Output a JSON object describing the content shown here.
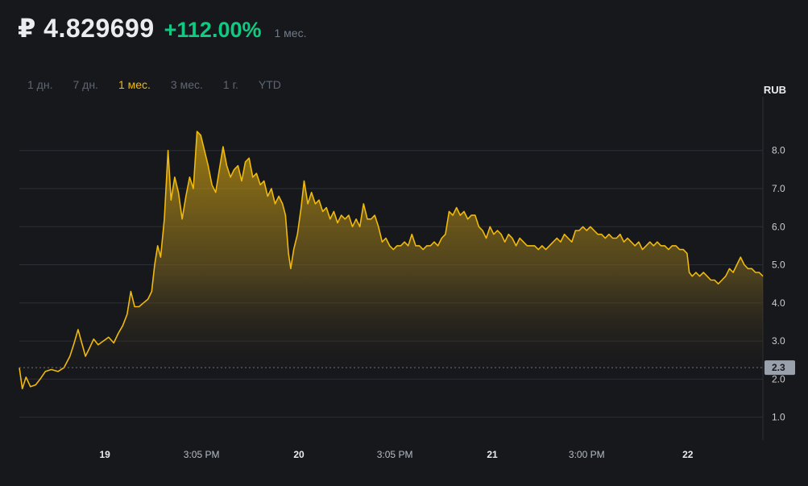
{
  "header": {
    "price": "₽ 4.829699",
    "change": "+112.00%",
    "period": "1 мес."
  },
  "ranges": [
    {
      "label": "1 дн.",
      "active": false
    },
    {
      "label": "7 дн.",
      "active": false
    },
    {
      "label": "1 мес.",
      "active": true
    },
    {
      "label": "3 мес.",
      "active": false
    },
    {
      "label": "1 г.",
      "active": false
    },
    {
      "label": "YTD",
      "active": false
    }
  ],
  "colors": {
    "line": "#f0b90b",
    "grid": "#2b2f36",
    "positive": "#0ecb81",
    "marker_bg": "#9aa1ac"
  },
  "chart_data": {
    "type": "area",
    "unit": "RUB",
    "ylim": [
      0.4,
      9.2
    ],
    "yticks": [
      "1.0",
      "2.0",
      "3.0",
      "4.0",
      "5.0",
      "6.0",
      "7.0",
      "8.0"
    ],
    "ytick_values": [
      1,
      2,
      3,
      4,
      5,
      6,
      7,
      8
    ],
    "xlim": [
      0,
      100
    ],
    "xticks": [
      {
        "x": 11.5,
        "label": "19",
        "day": true
      },
      {
        "x": 24.5,
        "label": "3:05 PM",
        "day": false
      },
      {
        "x": 37.6,
        "label": "20",
        "day": true
      },
      {
        "x": 50.5,
        "label": "3:05 PM",
        "day": false
      },
      {
        "x": 63.6,
        "label": "21",
        "day": true
      },
      {
        "x": 76.3,
        "label": "3:00 PM",
        "day": false
      },
      {
        "x": 89.9,
        "label": "22",
        "day": true
      }
    ],
    "reference_line": {
      "value": 2.3,
      "label": "2.3"
    },
    "series": [
      {
        "name": "price",
        "points": [
          [
            0,
            2.3
          ],
          [
            0.4,
            1.75
          ],
          [
            0.9,
            2.05
          ],
          [
            1.5,
            1.8
          ],
          [
            2.2,
            1.85
          ],
          [
            2.8,
            2.0
          ],
          [
            3.5,
            2.2
          ],
          [
            4.3,
            2.25
          ],
          [
            5.2,
            2.2
          ],
          [
            6.0,
            2.3
          ],
          [
            6.8,
            2.6
          ],
          [
            7.3,
            2.9
          ],
          [
            7.9,
            3.3
          ],
          [
            8.4,
            2.95
          ],
          [
            8.9,
            2.6
          ],
          [
            9.4,
            2.8
          ],
          [
            10.0,
            3.05
          ],
          [
            10.6,
            2.9
          ],
          [
            11.3,
            3.0
          ],
          [
            12.0,
            3.1
          ],
          [
            12.7,
            2.95
          ],
          [
            13.3,
            3.2
          ],
          [
            13.9,
            3.4
          ],
          [
            14.5,
            3.7
          ],
          [
            15.0,
            4.3
          ],
          [
            15.5,
            3.9
          ],
          [
            16.1,
            3.9
          ],
          [
            16.7,
            4.0
          ],
          [
            17.3,
            4.1
          ],
          [
            17.8,
            4.3
          ],
          [
            18.2,
            5.0
          ],
          [
            18.6,
            5.5
          ],
          [
            19.0,
            5.2
          ],
          [
            19.5,
            6.2
          ],
          [
            20.0,
            8.0
          ],
          [
            20.4,
            6.7
          ],
          [
            20.9,
            7.3
          ],
          [
            21.4,
            6.9
          ],
          [
            21.9,
            6.2
          ],
          [
            22.4,
            6.8
          ],
          [
            22.9,
            7.3
          ],
          [
            23.4,
            7.0
          ],
          [
            23.9,
            8.5
          ],
          [
            24.4,
            8.4
          ],
          [
            24.9,
            8.0
          ],
          [
            25.4,
            7.6
          ],
          [
            25.9,
            7.1
          ],
          [
            26.4,
            6.9
          ],
          [
            26.9,
            7.5
          ],
          [
            27.4,
            8.1
          ],
          [
            27.9,
            7.6
          ],
          [
            28.4,
            7.3
          ],
          [
            28.9,
            7.5
          ],
          [
            29.4,
            7.6
          ],
          [
            29.9,
            7.2
          ],
          [
            30.4,
            7.7
          ],
          [
            30.9,
            7.8
          ],
          [
            31.4,
            7.3
          ],
          [
            31.9,
            7.4
          ],
          [
            32.4,
            7.1
          ],
          [
            32.9,
            7.2
          ],
          [
            33.4,
            6.8
          ],
          [
            33.9,
            7.0
          ],
          [
            34.4,
            6.6
          ],
          [
            34.9,
            6.8
          ],
          [
            35.4,
            6.6
          ],
          [
            35.8,
            6.3
          ],
          [
            36.2,
            5.3
          ],
          [
            36.5,
            4.9
          ],
          [
            36.9,
            5.4
          ],
          [
            37.4,
            5.8
          ],
          [
            37.9,
            6.5
          ],
          [
            38.3,
            7.2
          ],
          [
            38.8,
            6.6
          ],
          [
            39.3,
            6.9
          ],
          [
            39.8,
            6.6
          ],
          [
            40.3,
            6.7
          ],
          [
            40.8,
            6.4
          ],
          [
            41.3,
            6.5
          ],
          [
            41.8,
            6.2
          ],
          [
            42.3,
            6.4
          ],
          [
            42.8,
            6.1
          ],
          [
            43.3,
            6.3
          ],
          [
            43.8,
            6.2
          ],
          [
            44.3,
            6.3
          ],
          [
            44.8,
            6.0
          ],
          [
            45.3,
            6.2
          ],
          [
            45.8,
            6.0
          ],
          [
            46.3,
            6.6
          ],
          [
            46.8,
            6.2
          ],
          [
            47.3,
            6.2
          ],
          [
            47.8,
            6.3
          ],
          [
            48.3,
            6.0
          ],
          [
            48.8,
            5.6
          ],
          [
            49.3,
            5.7
          ],
          [
            49.8,
            5.5
          ],
          [
            50.3,
            5.4
          ],
          [
            50.8,
            5.5
          ],
          [
            51.3,
            5.5
          ],
          [
            51.8,
            5.6
          ],
          [
            52.3,
            5.5
          ],
          [
            52.8,
            5.8
          ],
          [
            53.3,
            5.5
          ],
          [
            53.8,
            5.5
          ],
          [
            54.3,
            5.4
          ],
          [
            54.8,
            5.5
          ],
          [
            55.3,
            5.5
          ],
          [
            55.8,
            5.6
          ],
          [
            56.3,
            5.5
          ],
          [
            56.8,
            5.7
          ],
          [
            57.3,
            5.8
          ],
          [
            57.8,
            6.4
          ],
          [
            58.3,
            6.3
          ],
          [
            58.8,
            6.5
          ],
          [
            59.3,
            6.3
          ],
          [
            59.8,
            6.4
          ],
          [
            60.3,
            6.2
          ],
          [
            60.8,
            6.3
          ],
          [
            61.3,
            6.3
          ],
          [
            61.8,
            6.0
          ],
          [
            62.3,
            5.9
          ],
          [
            62.8,
            5.7
          ],
          [
            63.3,
            6.0
          ],
          [
            63.8,
            5.8
          ],
          [
            64.3,
            5.9
          ],
          [
            64.8,
            5.8
          ],
          [
            65.3,
            5.6
          ],
          [
            65.8,
            5.8
          ],
          [
            66.3,
            5.7
          ],
          [
            66.8,
            5.5
          ],
          [
            67.3,
            5.7
          ],
          [
            67.8,
            5.6
          ],
          [
            68.3,
            5.5
          ],
          [
            68.8,
            5.5
          ],
          [
            69.3,
            5.5
          ],
          [
            69.8,
            5.4
          ],
          [
            70.3,
            5.5
          ],
          [
            70.8,
            5.4
          ],
          [
            71.3,
            5.5
          ],
          [
            71.8,
            5.6
          ],
          [
            72.3,
            5.7
          ],
          [
            72.8,
            5.6
          ],
          [
            73.3,
            5.8
          ],
          [
            73.8,
            5.7
          ],
          [
            74.3,
            5.6
          ],
          [
            74.8,
            5.9
          ],
          [
            75.3,
            5.9
          ],
          [
            75.8,
            6.0
          ],
          [
            76.3,
            5.9
          ],
          [
            76.8,
            6.0
          ],
          [
            77.3,
            5.9
          ],
          [
            77.8,
            5.8
          ],
          [
            78.3,
            5.8
          ],
          [
            78.8,
            5.7
          ],
          [
            79.3,
            5.8
          ],
          [
            79.8,
            5.7
          ],
          [
            80.3,
            5.7
          ],
          [
            80.8,
            5.8
          ],
          [
            81.3,
            5.6
          ],
          [
            81.8,
            5.7
          ],
          [
            82.3,
            5.6
          ],
          [
            82.8,
            5.5
          ],
          [
            83.3,
            5.6
          ],
          [
            83.8,
            5.4
          ],
          [
            84.3,
            5.5
          ],
          [
            84.8,
            5.6
          ],
          [
            85.3,
            5.5
          ],
          [
            85.8,
            5.6
          ],
          [
            86.3,
            5.5
          ],
          [
            86.8,
            5.5
          ],
          [
            87.3,
            5.4
          ],
          [
            87.8,
            5.5
          ],
          [
            88.3,
            5.5
          ],
          [
            88.8,
            5.4
          ],
          [
            89.3,
            5.4
          ],
          [
            89.8,
            5.3
          ],
          [
            90.1,
            4.8
          ],
          [
            90.5,
            4.7
          ],
          [
            91.0,
            4.8
          ],
          [
            91.5,
            4.7
          ],
          [
            92.0,
            4.8
          ],
          [
            92.5,
            4.7
          ],
          [
            93.0,
            4.6
          ],
          [
            93.5,
            4.6
          ],
          [
            94.0,
            4.5
          ],
          [
            94.5,
            4.6
          ],
          [
            95.0,
            4.7
          ],
          [
            95.5,
            4.9
          ],
          [
            96.0,
            4.8
          ],
          [
            96.5,
            5.0
          ],
          [
            97.0,
            5.2
          ],
          [
            97.5,
            5.0
          ],
          [
            98.0,
            4.9
          ],
          [
            98.5,
            4.9
          ],
          [
            99.0,
            4.8
          ],
          [
            99.5,
            4.8
          ],
          [
            100,
            4.7
          ]
        ]
      }
    ]
  }
}
